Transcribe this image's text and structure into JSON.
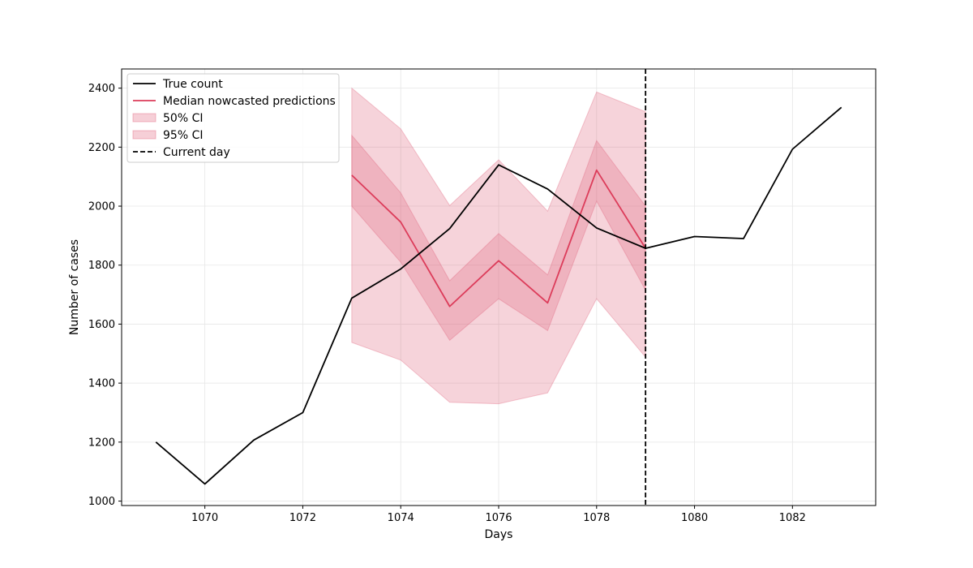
{
  "chart_data": {
    "type": "line",
    "title": "",
    "xlabel": "Days",
    "ylabel": "Number of cases",
    "xlim": [
      1068.3,
      1083.7
    ],
    "ylim": [
      985,
      2465
    ],
    "x_ticks": [
      1070,
      1072,
      1074,
      1076,
      1078,
      1080,
      1082
    ],
    "y_ticks": [
      1000,
      1200,
      1400,
      1600,
      1800,
      2000,
      2200,
      2400
    ],
    "grid": true,
    "legend_position": "top-left",
    "series": [
      {
        "name": "True count",
        "kind": "line",
        "color": "#000000",
        "x": [
          1069,
          1070,
          1071,
          1072,
          1073,
          1074,
          1075,
          1076,
          1077,
          1078,
          1079,
          1080,
          1081,
          1082,
          1083
        ],
        "y": [
          1200,
          1058,
          1207,
          1300,
          1688,
          1787,
          1924,
          2140,
          2058,
          1926,
          1857,
          1897,
          1890,
          2193,
          2335
        ]
      },
      {
        "name": "Median nowcasted predictions",
        "kind": "line",
        "color": "#dc3c5a",
        "x": [
          1073,
          1074,
          1075,
          1076,
          1077,
          1078,
          1079
        ],
        "y": [
          2105,
          1946,
          1660,
          1815,
          1672,
          2122,
          1857
        ]
      },
      {
        "name": "50% CI",
        "kind": "band",
        "color": "#e8a0b0",
        "x": [
          1073,
          1074,
          1075,
          1076,
          1077,
          1078,
          1079
        ],
        "lower": [
          2000,
          1810,
          1545,
          1686,
          1578,
          2017,
          1715
        ],
        "upper": [
          2240,
          2045,
          1747,
          1907,
          1767,
          2222,
          2000
        ]
      },
      {
        "name": "95% CI",
        "kind": "band",
        "color": "#f3c3cd",
        "x": [
          1073,
          1074,
          1075,
          1076,
          1077,
          1078,
          1079
        ],
        "lower": [
          1538,
          1478,
          1335,
          1330,
          1367,
          1686,
          1488
        ],
        "upper": [
          2400,
          2262,
          2002,
          2157,
          1983,
          2387,
          2320
        ]
      },
      {
        "name": "Current day",
        "kind": "vline",
        "color": "#000000",
        "x": 1079
      }
    ]
  }
}
